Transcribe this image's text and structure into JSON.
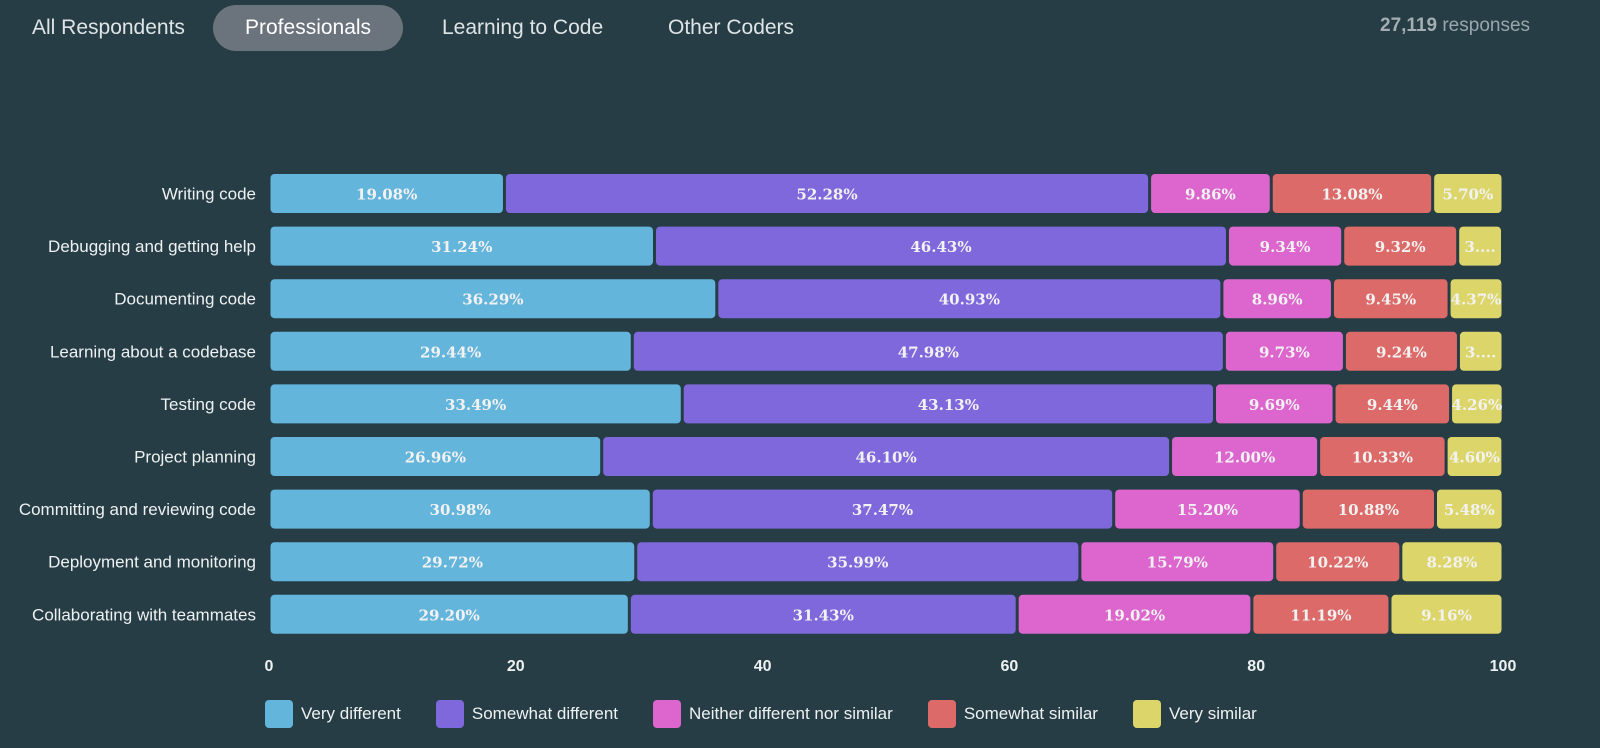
{
  "tabs": [
    {
      "label": "All Respondents",
      "active": false
    },
    {
      "label": "Professionals",
      "active": true
    },
    {
      "label": "Learning to Code",
      "active": false
    },
    {
      "label": "Other Coders",
      "active": false
    }
  ],
  "responses": {
    "count": "27,119",
    "label": "responses"
  },
  "chart_data": {
    "type": "bar",
    "orientation": "horizontal",
    "stacked": true,
    "title": "",
    "xlabel": "",
    "ylabel": "",
    "xlim": [
      0,
      100
    ],
    "xticks": [
      0,
      20,
      40,
      60,
      80,
      100
    ],
    "grid": false,
    "legend_position": "bottom",
    "categories": [
      "Writing code",
      "Debugging and getting help",
      "Documenting code",
      "Learning about a codebase",
      "Testing code",
      "Project planning",
      "Committing and reviewing code",
      "Deployment and monitoring",
      "Collaborating with teammates"
    ],
    "series": [
      {
        "name": "Very different",
        "color": "#64b5dc",
        "values": [
          19.08,
          31.24,
          36.29,
          29.44,
          33.49,
          26.96,
          30.98,
          29.72,
          29.2
        ]
      },
      {
        "name": "Somewhat different",
        "color": "#7f68dc",
        "values": [
          52.28,
          46.43,
          40.93,
          47.98,
          43.13,
          46.1,
          37.47,
          35.99,
          31.43
        ]
      },
      {
        "name": "Neither different nor similar",
        "color": "#dc66cd",
        "values": [
          9.86,
          9.34,
          8.96,
          9.73,
          9.69,
          12.0,
          15.2,
          15.79,
          19.02
        ]
      },
      {
        "name": "Somewhat similar",
        "color": "#dc6a68",
        "values": [
          13.08,
          9.32,
          9.45,
          9.24,
          9.44,
          10.33,
          10.88,
          10.22,
          11.19
        ]
      },
      {
        "name": "Very similar",
        "color": "#dcd66a",
        "values": [
          5.7,
          3.63,
          4.37,
          3.61,
          4.26,
          4.6,
          5.48,
          8.28,
          9.16
        ]
      }
    ],
    "data_labels": [
      [
        "19.08%",
        "52.28%",
        "9.86%",
        "13.08%",
        "5.70%"
      ],
      [
        "31.24%",
        "46.43%",
        "9.34%",
        "9.32%",
        "3...."
      ],
      [
        "36.29%",
        "40.93%",
        "8.96%",
        "9.45%",
        "4.37%"
      ],
      [
        "29.44%",
        "47.98%",
        "9.73%",
        "9.24%",
        "3...."
      ],
      [
        "33.49%",
        "43.13%",
        "9.69%",
        "9.44%",
        "4.26%"
      ],
      [
        "26.96%",
        "46.10%",
        "12.00%",
        "10.33%",
        "4.60%"
      ],
      [
        "30.98%",
        "37.47%",
        "15.20%",
        "10.88%",
        "5.48%"
      ],
      [
        "29.72%",
        "35.99%",
        "15.79%",
        "10.22%",
        "8.28%"
      ],
      [
        "29.20%",
        "31.43%",
        "19.02%",
        "11.19%",
        "9.16%"
      ]
    ]
  }
}
